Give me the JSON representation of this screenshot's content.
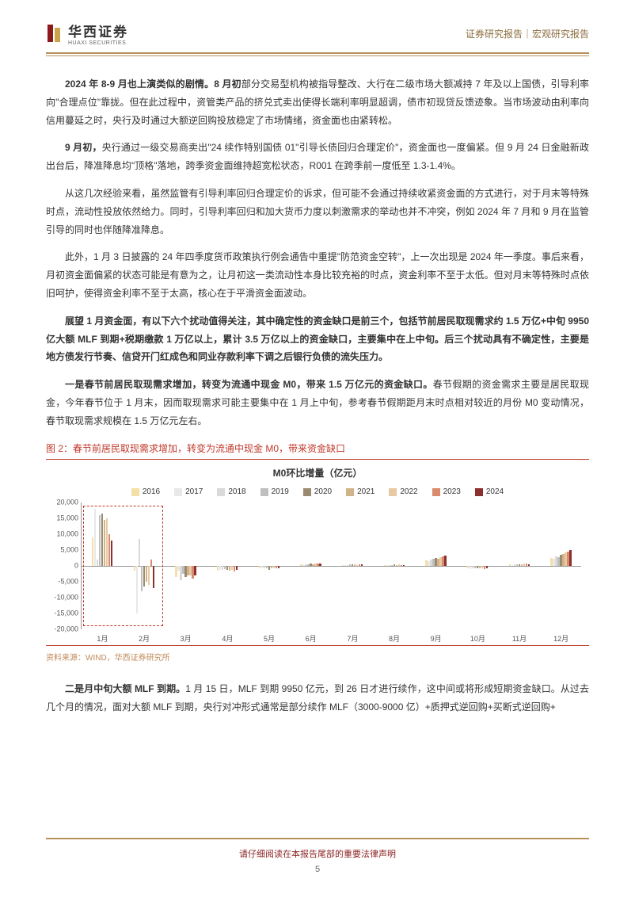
{
  "header": {
    "company_cn": "华西证券",
    "company_en": "HUAXI SECURITIES",
    "doc_title": "证券研究报告｜宏观研究报告",
    "logo_color_left": "#8b1a1a",
    "logo_color_right": "#c9a44a"
  },
  "paragraphs": {
    "p1_bold": "2024 年 8-9 月也上演类似的剧情。8 月初",
    "p1_rest": "部分交易型机构被指导整改、大行在二级市场大额减持 7 年及以上国债，引导利率向\"合理点位\"靠拢。但在此过程中，资管类产品的挤兑式卖出使得长端利率明显超调，债市初现贷反馈迹象。当市场波动由利率向信用蔓延之时，央行及时通过大额逆回购投放稳定了市场情绪，资金面也由紧转松。",
    "p2_bold": "9 月初，",
    "p2_rest": "央行通过一级交易商卖出\"24 续作特别国债 01\"引导长债回归合理定价\"，资金面也一度偏紧。但 9 月 24 日金融新政出台后，降准降息均\"顶格\"落地，跨季资金面维持超宽松状态，R001 在跨季前一度低至 1.3-1.4%。",
    "p3": "从这几次经验来看，虽然监管有引导利率回归合理定价的诉求，但可能不会通过持续收紧资金面的方式进行，对于月末等特殊时点，流动性投放依然给力。同时，引导利率回归和加大货币力度以刺激需求的举动也并不冲突，例如 2024 年 7 月和 9 月在监管引导的同时也伴随降准降息。",
    "p4": "此外，1 月 3 日披露的 24 年四季度货币政策执行例会通告中重提\"防范资金空转\"，上一次出现是 2024 年一季度。事后来看，月初资金面偏紧的状态可能是有意为之，让月初这一类流动性本身比较充裕的时点，资金利率不至于太低。但对月末等特殊时点依旧呵护，使得资金利率不至于太高，核心在于平滑资金面波动。",
    "p5_bold": "展望 1 月资金面，有以下六个扰动值得关注，其中确定性的资金缺口是前三个，包括节前居民取现需求约 1.5 万亿+中旬 9950 亿大额 MLF 到期+税期缴款 1 万亿以上，累计 3.5 万亿以上的资金缺口，主要集中在上中旬。后三个扰动具有不确定性，主要是地方债发行节奏、信贷开门红成色和同业存款利率下调之后银行负债的流失压力。",
    "p6_bold": "一是春节前居民取现需求增加，转变为流通中现金 M0，带来 1.5 万亿元的资金缺口。",
    "p6_rest": "春节假期的资金需求主要是居民取现金，今年春节位于 1 月末，因而取现需求可能主要集中在 1 月上中旬，参考春节假期距月末时点相对较近的月份 M0 变动情况，春节取现需求规模在 1.5 万亿元左右。",
    "p7_bold": "二是月中旬大额 MLF 到期。",
    "p7_rest": "1 月 15 日，MLF 到期 9950 亿元，到 26 日才进行续作，这中间或将形成短期资金缺口。从过去几个月的情况，面对大额 MLF 到期，央行对冲形式通常是部分续作 MLF（3000-9000 亿）+质押式逆回购+买断式逆回购+"
  },
  "figure": {
    "title": "图 2：春节前居民取现需求增加，转变为流通中现金 M0，带来资金缺口",
    "chart_title": "M0环比增量（亿元）",
    "source": "资料来源：WIND，华西证券研究所",
    "ylim": [
      -20000,
      20000
    ],
    "yticks": [
      -20000,
      -15000,
      -10000,
      -5000,
      0,
      5000,
      10000,
      15000,
      20000
    ],
    "months": [
      "1月",
      "2月",
      "3月",
      "4月",
      "5月",
      "6月",
      "7月",
      "8月",
      "9月",
      "10月",
      "11月",
      "12月"
    ],
    "series": [
      {
        "name": "2016",
        "color": "#f4dfa6"
      },
      {
        "name": "2017",
        "color": "#e8e8e8"
      },
      {
        "name": "2018",
        "color": "#d9d9d9"
      },
      {
        "name": "2019",
        "color": "#bfbfbf"
      },
      {
        "name": "2020",
        "color": "#998b6f"
      },
      {
        "name": "2021",
        "color": "#d1b38a"
      },
      {
        "name": "2022",
        "color": "#e8c9a3"
      },
      {
        "name": "2023",
        "color": "#d98b6e"
      },
      {
        "name": "2024",
        "color": "#8b2f2f"
      }
    ],
    "data": {
      "1月": [
        9000,
        18000,
        2000,
        16000,
        16500,
        14500,
        15000,
        10000,
        8000
      ],
      "2月": [
        -1500,
        -15000,
        8500,
        -8000,
        -6500,
        -5000,
        -6000,
        2000,
        -7000
      ],
      "3月": [
        -3500,
        -1500,
        -4500,
        -2500,
        -3500,
        -3000,
        -3000,
        -4000,
        -3000
      ],
      "4月": [
        -1500,
        -1200,
        -1200,
        -1000,
        -1200,
        -1500,
        -1200,
        -1800,
        -1200
      ],
      "5月": [
        -700,
        -600,
        -800,
        -600,
        -1200,
        -800,
        -800,
        -800,
        -600
      ],
      "6月": [
        500,
        400,
        500,
        600,
        800,
        600,
        700,
        800,
        700
      ],
      "7月": [
        300,
        300,
        400,
        500,
        600,
        500,
        400,
        500,
        600
      ],
      "8月": [
        200,
        300,
        300,
        400,
        500,
        400,
        500,
        400,
        400
      ],
      "9月": [
        1800,
        1500,
        2000,
        2200,
        2500,
        2400,
        2800,
        3000,
        3200
      ],
      "10月": [
        -800,
        -1000,
        -700,
        -800,
        -600,
        -700,
        -800,
        -900,
        -600
      ],
      "11月": [
        500,
        400,
        500,
        600,
        500,
        600,
        800,
        700,
        600
      ],
      "12月": [
        2500,
        2200,
        3000,
        2800,
        3500,
        3800,
        4200,
        4500,
        5000
      ]
    },
    "highlight_months": [
      "1月",
      "2月"
    ],
    "grid_color": "#e8e8e8",
    "axis_color": "#999999"
  },
  "footer": {
    "disclaimer": "请仔细阅读在本报告尾部的重要法律声明",
    "page": "5"
  },
  "colors": {
    "gold": "#b5925c",
    "red": "#c0392b",
    "dark_red": "#8a1f1f"
  }
}
